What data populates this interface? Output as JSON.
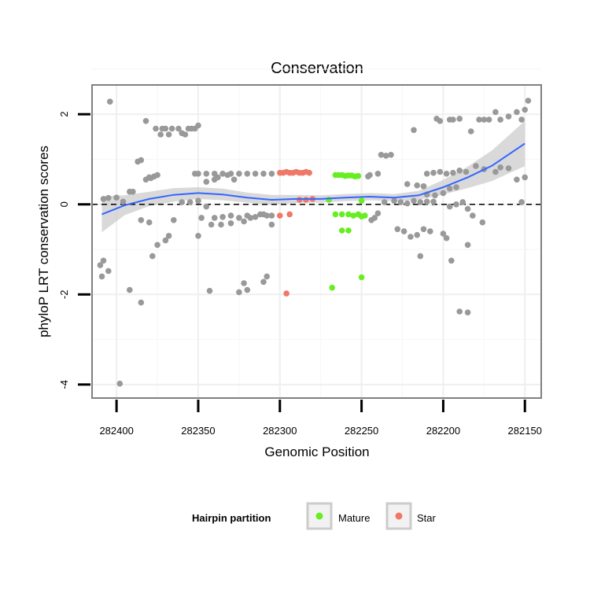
{
  "chart_data": {
    "type": "scatter",
    "title": "Conservation",
    "xlabel": "Genomic Position",
    "ylabel": "phyloP LRT conservation scores",
    "x_reversed": true,
    "xlim": [
      282415,
      282140
    ],
    "ylim": [
      -4.3,
      2.65
    ],
    "x_ticks": [
      282400,
      282350,
      282300,
      282250,
      282200,
      282150
    ],
    "y_ticks": [
      -4,
      -2,
      0,
      2
    ],
    "x_tick_labels": [
      "282400",
      "282350",
      "282300",
      "282250",
      "282200",
      "282150"
    ],
    "y_tick_labels": [
      "-4",
      "-2",
      "0",
      "2"
    ],
    "grid": true,
    "reference_line": {
      "y": 0,
      "style": "dashed"
    },
    "legend": {
      "title": "Hairpin partition",
      "position": "bottom",
      "entries": [
        {
          "name": "Mature",
          "color": "#66ee22"
        },
        {
          "name": "Star",
          "color": "#f07868"
        }
      ]
    },
    "colors": {
      "other": "#999999",
      "Mature": "#66ee22",
      "Star": "#f07868",
      "smooth": "#3366ff",
      "band": "#cccccc"
    },
    "smooth": {
      "x": [
        282409,
        282395,
        282380,
        282365,
        282350,
        282335,
        282320,
        282305,
        282290,
        282275,
        282260,
        282245,
        282230,
        282215,
        282200,
        282185,
        282170,
        282150
      ],
      "y": [
        -0.22,
        -0.02,
        0.12,
        0.21,
        0.25,
        0.22,
        0.15,
        0.1,
        0.12,
        0.12,
        0.15,
        0.17,
        0.15,
        0.2,
        0.38,
        0.6,
        0.86,
        1.35
      ],
      "lower": [
        -0.62,
        -0.24,
        -0.04,
        0.06,
        0.12,
        0.09,
        0.04,
        -0.01,
        0.03,
        0.04,
        0.07,
        0.09,
        0.07,
        0.1,
        0.22,
        0.36,
        0.52,
        0.85
      ],
      "upper": [
        0.18,
        0.2,
        0.28,
        0.36,
        0.38,
        0.35,
        0.26,
        0.21,
        0.21,
        0.2,
        0.23,
        0.25,
        0.23,
        0.3,
        0.54,
        0.84,
        1.2,
        1.85
      ]
    },
    "series": [
      {
        "name": "Mature",
        "points": [
          [
            282266,
            0.65
          ],
          [
            282264,
            0.65
          ],
          [
            282262,
            0.65
          ],
          [
            282260,
            0.63
          ],
          [
            282258,
            0.64
          ],
          [
            282256,
            0.64
          ],
          [
            282254,
            0.62
          ],
          [
            282252,
            0.63
          ],
          [
            282266,
            -0.22
          ],
          [
            282262,
            -0.22
          ],
          [
            282258,
            -0.22
          ],
          [
            282255,
            -0.25
          ],
          [
            282252,
            -0.22
          ],
          [
            282250,
            -0.27
          ],
          [
            282248,
            -0.25
          ],
          [
            282262,
            -0.58
          ],
          [
            282258,
            -0.58
          ],
          [
            282268,
            -1.85
          ],
          [
            282250,
            -1.62
          ],
          [
            282270,
            0.1
          ],
          [
            282250,
            0.08
          ]
        ]
      },
      {
        "name": "Star",
        "points": [
          [
            282300,
            0.7
          ],
          [
            282298,
            0.7
          ],
          [
            282296,
            0.72
          ],
          [
            282294,
            0.7
          ],
          [
            282292,
            0.7
          ],
          [
            282290,
            0.72
          ],
          [
            282288,
            0.7
          ],
          [
            282286,
            0.7
          ],
          [
            282284,
            0.72
          ],
          [
            282282,
            0.7
          ],
          [
            282300,
            -0.25
          ],
          [
            282294,
            -0.22
          ],
          [
            282296,
            -1.98
          ],
          [
            282288,
            0.1
          ],
          [
            282284,
            0.1
          ],
          [
            282280,
            0.12
          ]
        ]
      },
      {
        "name": "",
        "points": [
          [
            282408,
            0.12
          ],
          [
            282405,
            0.14
          ],
          [
            282400,
            0.15
          ],
          [
            282396,
            0.06
          ],
          [
            282392,
            0.28
          ],
          [
            282390,
            0.28
          ],
          [
            282387,
            0.95
          ],
          [
            282385,
            0.98
          ],
          [
            282382,
            0.55
          ],
          [
            282380,
            0.6
          ],
          [
            282377,
            0.62
          ],
          [
            282375,
            0.65
          ],
          [
            282379,
            0.58
          ],
          [
            282385,
            -0.35
          ],
          [
            282380,
            -0.4
          ],
          [
            282375,
            -0.9
          ],
          [
            282370,
            -0.8
          ],
          [
            282368,
            -0.7
          ],
          [
            282365,
            -0.35
          ],
          [
            282410,
            -1.35
          ],
          [
            282409,
            -1.6
          ],
          [
            282408,
            -1.25
          ],
          [
            282405,
            -1.48
          ],
          [
            282392,
            -1.9
          ],
          [
            282385,
            -2.18
          ],
          [
            282378,
            -1.15
          ],
          [
            282404,
            2.28
          ],
          [
            282382,
            1.85
          ],
          [
            282398,
            -3.98
          ],
          [
            282376,
            1.68
          ],
          [
            282372,
            1.68
          ],
          [
            282373,
            1.55
          ],
          [
            282368,
            1.55
          ],
          [
            282370,
            1.68
          ],
          [
            282366,
            1.68
          ],
          [
            282362,
            1.68
          ],
          [
            282360,
            1.58
          ],
          [
            282358,
            1.55
          ],
          [
            282356,
            1.68
          ],
          [
            282354,
            1.68
          ],
          [
            282352,
            1.68
          ],
          [
            282350,
            1.75
          ],
          [
            282352,
            0.68
          ],
          [
            282350,
            0.68
          ],
          [
            282345,
            0.68
          ],
          [
            282340,
            0.68
          ],
          [
            282335,
            0.68
          ],
          [
            282330,
            0.68
          ],
          [
            282325,
            0.68
          ],
          [
            282320,
            0.68
          ],
          [
            282315,
            0.68
          ],
          [
            282310,
            0.68
          ],
          [
            282305,
            0.68
          ],
          [
            282360,
            0.05
          ],
          [
            282355,
            0.05
          ],
          [
            282350,
            0.08
          ],
          [
            282345,
            -0.05
          ],
          [
            282340,
            -0.3
          ],
          [
            282335,
            -0.28
          ],
          [
            282330,
            -0.25
          ],
          [
            282325,
            -0.3
          ],
          [
            282320,
            -0.25
          ],
          [
            282315,
            -0.28
          ],
          [
            282310,
            -0.22
          ],
          [
            282305,
            -0.25
          ],
          [
            282348,
            -0.3
          ],
          [
            282342,
            -0.45
          ],
          [
            282336,
            -0.45
          ],
          [
            282330,
            -0.42
          ],
          [
            282322,
            -0.38
          ],
          [
            282318,
            -0.3
          ],
          [
            282312,
            -0.22
          ],
          [
            282308,
            -0.25
          ],
          [
            282350,
            -0.7
          ],
          [
            282343,
            -1.92
          ],
          [
            282325,
            -1.95
          ],
          [
            282322,
            -1.75
          ],
          [
            282320,
            -1.9
          ],
          [
            282310,
            -1.72
          ],
          [
            282308,
            -1.6
          ],
          [
            282305,
            -0.45
          ],
          [
            282246,
            0.62
          ],
          [
            282245,
            0.65
          ],
          [
            282240,
            0.68
          ],
          [
            282238,
            1.1
          ],
          [
            282235,
            1.08
          ],
          [
            282232,
            1.1
          ],
          [
            282230,
            0.08
          ],
          [
            282226,
            0.05
          ],
          [
            282222,
            0.02
          ],
          [
            282218,
            0.08
          ],
          [
            282214,
            0.05
          ],
          [
            282210,
            0.06
          ],
          [
            282206,
            0.06
          ],
          [
            282228,
            -0.55
          ],
          [
            282224,
            -0.6
          ],
          [
            282220,
            -0.72
          ],
          [
            282216,
            -0.68
          ],
          [
            282212,
            -0.55
          ],
          [
            282208,
            -0.6
          ],
          [
            282200,
            -0.65
          ],
          [
            282222,
            0.45
          ],
          [
            282216,
            0.42
          ],
          [
            282212,
            0.4
          ],
          [
            282210,
            0.22
          ],
          [
            282205,
            0.2
          ],
          [
            282200,
            0.25
          ],
          [
            282196,
            0.35
          ],
          [
            282192,
            0.38
          ],
          [
            282196,
            -0.05
          ],
          [
            282192,
            0.0
          ],
          [
            282188,
            0.05
          ],
          [
            282185,
            -0.1
          ],
          [
            282182,
            -0.25
          ],
          [
            282176,
            -0.4
          ],
          [
            282214,
            -1.15
          ],
          [
            282198,
            -0.75
          ],
          [
            282195,
            -1.25
          ],
          [
            282185,
            -0.9
          ],
          [
            282204,
            1.9
          ],
          [
            282202,
            1.85
          ],
          [
            282196,
            1.88
          ],
          [
            282194,
            1.88
          ],
          [
            282190,
            1.9
          ],
          [
            282183,
            1.62
          ],
          [
            282178,
            1.88
          ],
          [
            282175,
            1.88
          ],
          [
            282172,
            1.88
          ],
          [
            282168,
            2.05
          ],
          [
            282165,
            1.88
          ],
          [
            282160,
            1.95
          ],
          [
            282155,
            2.05
          ],
          [
            282152,
            1.88
          ],
          [
            282150,
            2.1
          ],
          [
            282148,
            2.3
          ],
          [
            282190,
            -2.38
          ],
          [
            282185,
            -2.4
          ],
          [
            282210,
            0.68
          ],
          [
            282206,
            0.7
          ],
          [
            282202,
            0.72
          ],
          [
            282198,
            0.68
          ],
          [
            282194,
            0.7
          ],
          [
            282190,
            0.75
          ],
          [
            282186,
            0.72
          ],
          [
            282180,
            0.85
          ],
          [
            282175,
            0.78
          ],
          [
            282168,
            0.72
          ],
          [
            282165,
            0.82
          ],
          [
            282160,
            0.8
          ],
          [
            282155,
            0.55
          ],
          [
            282150,
            0.6
          ],
          [
            282152,
            0.05
          ],
          [
            282218,
            1.65
          ],
          [
            282212,
            0.4
          ],
          [
            282236,
            0.05
          ],
          [
            282240,
            -0.2
          ],
          [
            282244,
            -0.35
          ],
          [
            282242,
            -0.3
          ],
          [
            282345,
            0.5
          ],
          [
            282340,
            0.55
          ],
          [
            282338,
            0.6
          ],
          [
            282332,
            0.65
          ],
          [
            282328,
            0.55
          ]
        ]
      }
    ]
  }
}
